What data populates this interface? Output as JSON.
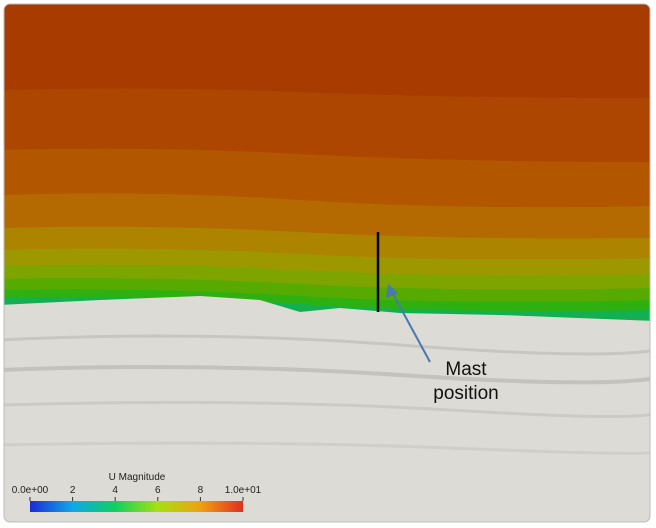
{
  "annotation": {
    "lines": [
      "Mast",
      "position"
    ]
  },
  "colorbar": {
    "title": "U Magnitude",
    "range": [
      0,
      10
    ],
    "ticks": [
      {
        "value": 0,
        "label": "0.0e+00"
      },
      2,
      4,
      6,
      8,
      {
        "value": 10,
        "label": "1.0e+01"
      }
    ]
  }
}
